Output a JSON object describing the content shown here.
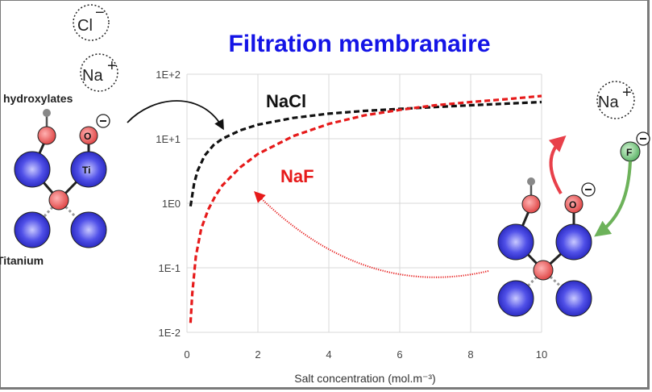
{
  "title": "Filtration membranaire",
  "labels": {
    "hydroxylates": "hydroxylates",
    "titanium": "Titanium",
    "ti": "Ti",
    "o": "O",
    "f": "F",
    "minus": "−",
    "plus": "+"
  },
  "ions": {
    "chloride": "Cl",
    "sodium": "Na"
  },
  "colors": {
    "title": "#1414e6",
    "nacl": "#111111",
    "naf": "#e61a1a",
    "titanium_atom": "#3a3adc",
    "oxygen_atom": "#e85a5a",
    "fluoride_atom": "#6dc27a",
    "arrow_red": "#e8404a",
    "arrow_green": "#6db25a"
  },
  "chart_data": {
    "type": "line",
    "xlabel": "Salt concentration (mol.m⁻³)",
    "ylabel": "",
    "xlim": [
      0,
      10
    ],
    "ylim": [
      0.01,
      100
    ],
    "y_scale": "log",
    "grid": true,
    "x_ticks": [
      "0",
      "2",
      "4",
      "6",
      "8",
      "10"
    ],
    "y_ticks": [
      "1E-2",
      "1E-1",
      "1E0",
      "1E+1",
      "1E+2"
    ],
    "series": [
      {
        "name": "NaCl",
        "color": "#111111",
        "x": [
          0.1,
          0.2,
          0.3,
          0.5,
          0.75,
          1,
          1.5,
          2,
          3,
          4,
          5,
          6,
          7,
          8,
          9,
          10
        ],
        "y": [
          0.9,
          2.0,
          3.2,
          5.5,
          8.0,
          10.0,
          13.5,
          16.5,
          21.0,
          24.5,
          27.0,
          29.0,
          31.0,
          33.0,
          35.0,
          37.0
        ]
      },
      {
        "name": "NaF",
        "color": "#e61a1a",
        "x": [
          0.1,
          0.15,
          0.25,
          0.4,
          0.6,
          0.8,
          1,
          1.5,
          2,
          3,
          4,
          5,
          6,
          7,
          8,
          9,
          10
        ],
        "y": [
          0.014,
          0.04,
          0.15,
          0.4,
          0.8,
          1.3,
          1.9,
          3.6,
          5.8,
          11.0,
          17.0,
          23.0,
          28.0,
          33.0,
          37.0,
          41.0,
          46.0
        ]
      }
    ]
  }
}
